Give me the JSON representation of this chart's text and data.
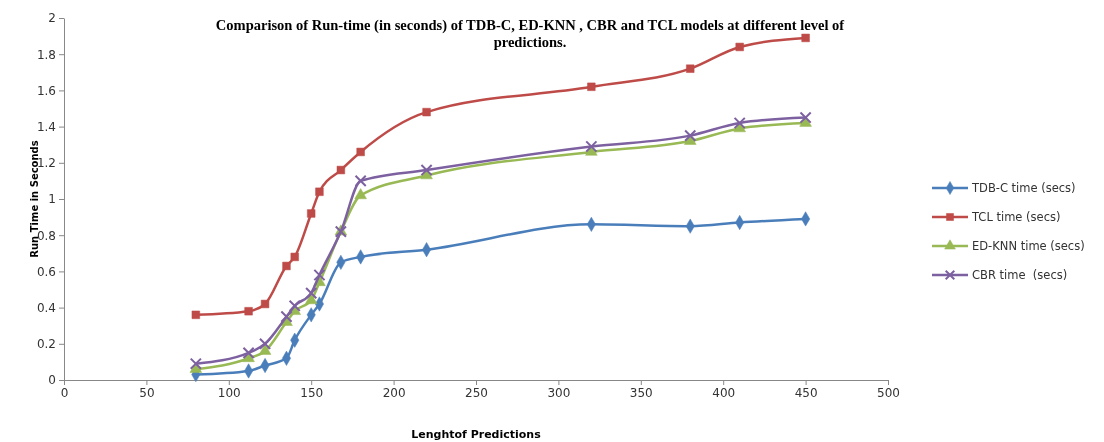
{
  "chart_data": {
    "type": "line",
    "title": "Comparison of Run-time (in seconds) of TDB-C, ED-KNN , CBR and TCL models at different level of predictions.",
    "xlabel": "Lenghtof Predictions",
    "ylabel": "Run Time in Seconds",
    "x": [
      80,
      112,
      122,
      135,
      140,
      150,
      155,
      168,
      180,
      220,
      320,
      380,
      410,
      450
    ],
    "series": [
      {
        "name": "TDB-C time (secs)",
        "color": "#4a7ebb",
        "marker": "diamond",
        "values": [
          0.03,
          0.05,
          0.08,
          0.12,
          0.22,
          0.36,
          0.42,
          0.65,
          0.68,
          0.72,
          0.86,
          0.85,
          0.87,
          0.89
        ]
      },
      {
        "name": "TCL time (secs)",
        "color": "#be4b48",
        "marker": "square",
        "values": [
          0.36,
          0.38,
          0.42,
          0.63,
          0.68,
          0.92,
          1.04,
          1.16,
          1.26,
          1.48,
          1.62,
          1.72,
          1.84,
          1.89
        ]
      },
      {
        "name": "ED-KNN time (secs)",
        "color": "#98b954",
        "marker": "triangle",
        "values": [
          0.06,
          0.12,
          0.16,
          0.32,
          0.38,
          0.44,
          0.54,
          0.82,
          1.02,
          1.13,
          1.26,
          1.32,
          1.39,
          1.42
        ]
      },
      {
        "name": "CBR time  (secs)",
        "color": "#7d60a0",
        "marker": "cross",
        "values": [
          0.09,
          0.15,
          0.2,
          0.35,
          0.41,
          0.48,
          0.58,
          0.82,
          1.1,
          1.16,
          1.29,
          1.35,
          1.42,
          1.45
        ]
      }
    ],
    "xlim": [
      0,
      500
    ],
    "xticks": [
      0,
      50,
      100,
      150,
      200,
      250,
      300,
      350,
      400,
      450,
      500
    ],
    "ylim": [
      0,
      2
    ],
    "yticks": [
      0,
      0.2,
      0.4,
      0.6,
      0.8,
      1,
      1.2,
      1.4,
      1.6,
      1.8,
      2
    ],
    "grid": false,
    "legend": "right"
  }
}
